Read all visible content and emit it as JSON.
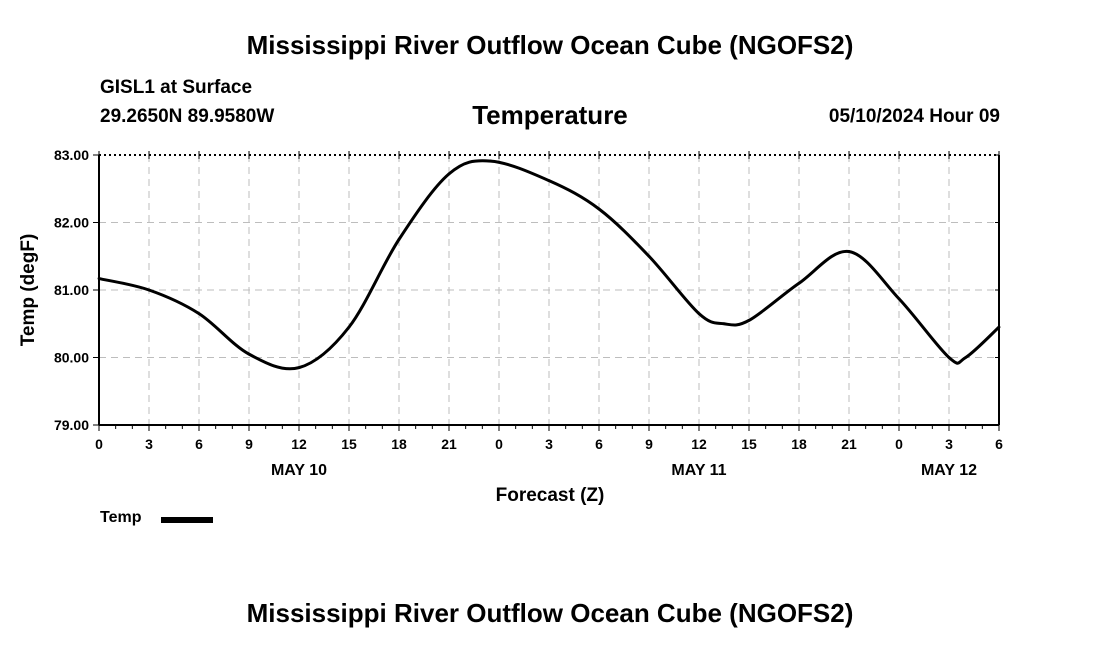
{
  "header": {
    "title": "Mississippi River Outflow Ocean Cube (NGOFS2)",
    "station": "GISL1 at Surface",
    "coords": "29.2650N  89.9580W",
    "variable": "Temperature",
    "datetime": "05/10/2024 Hour 09"
  },
  "footer": {
    "title": "Mississippi River Outflow Ocean Cube (NGOFS2)"
  },
  "legend": {
    "label": "Temp"
  },
  "chart_data": {
    "type": "line",
    "title": "Temperature",
    "xlabel": "Forecast (Z)",
    "ylabel": "Temp (degF)",
    "ylim": [
      79,
      83
    ],
    "xlim": [
      0,
      54
    ],
    "yticks": [
      "79.00",
      "80.00",
      "81.00",
      "82.00",
      "83.00"
    ],
    "xtick_labels": [
      "0",
      "3",
      "6",
      "9",
      "12",
      "15",
      "18",
      "21",
      "0",
      "3",
      "6",
      "9",
      "12",
      "15",
      "18",
      "21",
      "0",
      "3",
      "6"
    ],
    "date_labels": [
      {
        "hour": 12,
        "label": "MAY 10"
      },
      {
        "hour": 36,
        "label": "MAY 11"
      },
      {
        "hour": 51,
        "label": "MAY 12"
      }
    ],
    "grid": true,
    "series": [
      {
        "name": "Temp",
        "color": "#000000",
        "x": [
          0,
          3,
          6,
          9,
          12,
          15,
          18,
          21,
          23.5,
          27,
          30,
          33,
          36,
          37.5,
          39,
          42,
          45,
          48,
          51,
          52,
          54
        ],
        "values": [
          81.17,
          81.0,
          80.65,
          80.05,
          79.85,
          80.45,
          81.75,
          82.72,
          82.91,
          82.62,
          82.2,
          81.5,
          80.65,
          80.5,
          80.55,
          81.1,
          81.57,
          80.87,
          80.0,
          80.0,
          80.45
        ]
      }
    ]
  }
}
